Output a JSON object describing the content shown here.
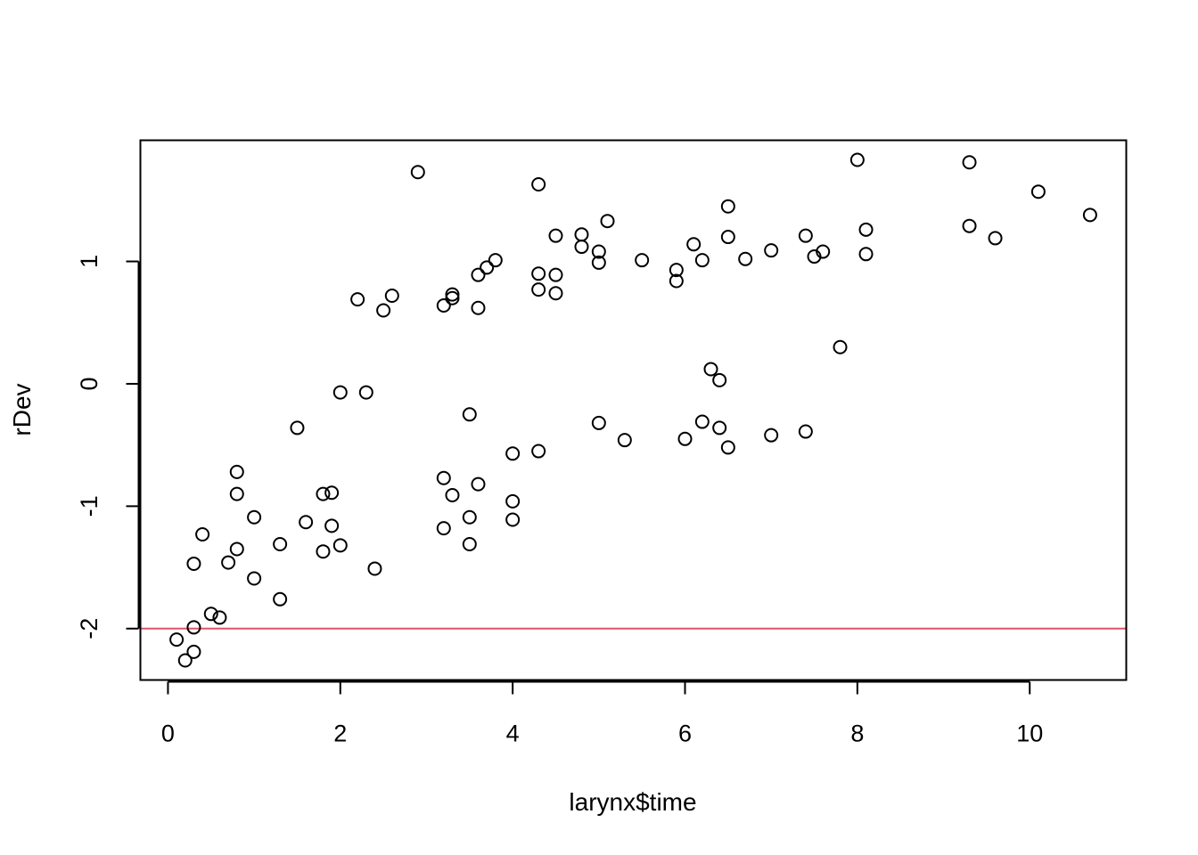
{
  "chart_data": {
    "type": "scatter",
    "title": "",
    "xlabel": "larynx$time",
    "ylabel": "rDev",
    "xlim": [
      -0.32,
      11.12
    ],
    "ylim": [
      -2.42,
      1.99
    ],
    "x_ticks": [
      0,
      2,
      4,
      6,
      8,
      10
    ],
    "y_ticks": [
      -2,
      -1,
      0,
      1
    ],
    "x_tick_labels": [
      "0",
      "2",
      "4",
      "6",
      "8",
      "10"
    ],
    "y_tick_labels": [
      "-2",
      "-1",
      "0",
      "1"
    ],
    "grid": false,
    "marker": "open-circle",
    "reference_line": {
      "orientation": "horizontal",
      "y": -2,
      "color": "#DF536B"
    },
    "points": [
      [
        0.1,
        -2.09
      ],
      [
        0.2,
        -2.26
      ],
      [
        0.3,
        -2.19
      ],
      [
        0.3,
        -1.99
      ],
      [
        0.3,
        -1.47
      ],
      [
        0.4,
        -1.23
      ],
      [
        0.5,
        -1.88
      ],
      [
        0.6,
        -1.91
      ],
      [
        0.7,
        -1.46
      ],
      [
        0.8,
        -0.72
      ],
      [
        0.8,
        -0.9
      ],
      [
        0.8,
        -1.35
      ],
      [
        1.0,
        -1.09
      ],
      [
        1.0,
        -1.59
      ],
      [
        1.3,
        -1.31
      ],
      [
        1.3,
        -1.76
      ],
      [
        1.5,
        -0.36
      ],
      [
        1.6,
        -1.13
      ],
      [
        1.8,
        -0.9
      ],
      [
        1.8,
        -1.37
      ],
      [
        1.9,
        -0.89
      ],
      [
        1.9,
        -1.16
      ],
      [
        2.0,
        -0.07
      ],
      [
        2.0,
        -1.32
      ],
      [
        2.2,
        0.69
      ],
      [
        2.3,
        -0.07
      ],
      [
        2.4,
        -1.51
      ],
      [
        2.5,
        0.6
      ],
      [
        2.6,
        0.72
      ],
      [
        2.9,
        1.73
      ],
      [
        3.2,
        0.64
      ],
      [
        3.2,
        -0.77
      ],
      [
        3.2,
        -1.18
      ],
      [
        3.3,
        0.73
      ],
      [
        3.3,
        0.7
      ],
      [
        3.3,
        -0.91
      ],
      [
        3.5,
        -0.25
      ],
      [
        3.5,
        -1.09
      ],
      [
        3.5,
        -1.31
      ],
      [
        3.6,
        0.89
      ],
      [
        3.6,
        0.62
      ],
      [
        3.6,
        -0.82
      ],
      [
        3.7,
        0.95
      ],
      [
        3.8,
        1.01
      ],
      [
        4.0,
        -0.57
      ],
      [
        4.0,
        -0.96
      ],
      [
        4.0,
        -1.11
      ],
      [
        4.3,
        1.63
      ],
      [
        4.3,
        0.9
      ],
      [
        4.3,
        0.77
      ],
      [
        4.3,
        -0.55
      ],
      [
        4.5,
        1.21
      ],
      [
        4.5,
        0.89
      ],
      [
        4.5,
        0.74
      ],
      [
        4.8,
        1.22
      ],
      [
        4.8,
        1.12
      ],
      [
        5.0,
        1.08
      ],
      [
        5.0,
        0.99
      ],
      [
        5.0,
        -0.32
      ],
      [
        5.1,
        1.33
      ],
      [
        5.3,
        -0.46
      ],
      [
        5.5,
        1.01
      ],
      [
        5.9,
        0.93
      ],
      [
        5.9,
        0.84
      ],
      [
        6.0,
        -0.45
      ],
      [
        6.1,
        1.14
      ],
      [
        6.2,
        1.01
      ],
      [
        6.2,
        -0.31
      ],
      [
        6.3,
        0.12
      ],
      [
        6.4,
        0.03
      ],
      [
        6.4,
        -0.36
      ],
      [
        6.5,
        1.45
      ],
      [
        6.5,
        1.2
      ],
      [
        6.5,
        -0.52
      ],
      [
        6.7,
        1.02
      ],
      [
        7.0,
        1.09
      ],
      [
        7.0,
        -0.42
      ],
      [
        7.4,
        1.21
      ],
      [
        7.4,
        -0.39
      ],
      [
        7.5,
        1.04
      ],
      [
        7.6,
        1.08
      ],
      [
        7.8,
        0.3
      ],
      [
        8.0,
        1.83
      ],
      [
        8.1,
        1.26
      ],
      [
        8.1,
        1.06
      ],
      [
        9.3,
        1.81
      ],
      [
        9.3,
        1.29
      ],
      [
        9.6,
        1.19
      ],
      [
        10.1,
        1.57
      ],
      [
        10.7,
        1.38
      ]
    ]
  }
}
